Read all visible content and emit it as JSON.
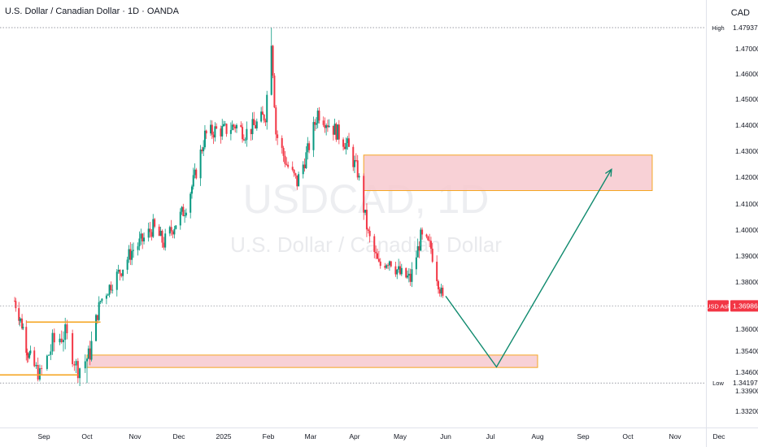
{
  "header": {
    "title": "U.S. Dollar / Canadian Dollar · 1D · OANDA",
    "currency": "CAD"
  },
  "watermark": {
    "symbol": "USDCAD, 1D",
    "name": "U.S. Dollar / Canadian Dollar"
  },
  "colors": {
    "up": "#089981",
    "down": "#f23645",
    "zone_fill": "#f7c9cf",
    "zone_border": "#f5a623",
    "arrow": "#0f8a6e",
    "price_badge": "#f23645"
  },
  "chart_data": {
    "type": "candlestick",
    "x_axis_labels": [
      "Sep",
      "Oct",
      "Nov",
      "Dec",
      "2025",
      "Feb",
      "Mar",
      "Apr",
      "May",
      "Jun",
      "Jul",
      "Aug",
      "Sep",
      "Oct",
      "Nov",
      "Dec"
    ],
    "y_axis_ticks": [
      "1.47000",
      "1.46000",
      "1.45000",
      "1.44000",
      "1.43000",
      "1.42000",
      "1.41000",
      "1.40000",
      "1.39000",
      "1.38000",
      "1.36000",
      "1.35400",
      "1.34600",
      "1.33900",
      "1.33200"
    ],
    "high": {
      "label": "High",
      "value": "1.47937"
    },
    "low": {
      "label": "Low",
      "value": "1.34197"
    },
    "current": {
      "label": "USD Ask",
      "value": "1.36986"
    },
    "price_path": [
      [
        "2024-08-15",
        1.372
      ],
      [
        "2024-08-22",
        1.362
      ],
      [
        "2024-08-29",
        1.352
      ],
      [
        "2024-09-05",
        1.345
      ],
      [
        "2024-09-12",
        1.356
      ],
      [
        "2024-09-19",
        1.359
      ],
      [
        "2024-09-26",
        1.347
      ],
      [
        "2024-10-03",
        1.353
      ],
      [
        "2024-10-10",
        1.372
      ],
      [
        "2024-10-17",
        1.379
      ],
      [
        "2024-10-24",
        1.385
      ],
      [
        "2024-10-31",
        1.392
      ],
      [
        "2024-11-07",
        1.396
      ],
      [
        "2024-11-14",
        1.401
      ],
      [
        "2024-11-21",
        1.395
      ],
      [
        "2024-11-28",
        1.402
      ],
      [
        "2024-12-05",
        1.408
      ],
      [
        "2024-12-12",
        1.42
      ],
      [
        "2024-12-19",
        1.436
      ],
      [
        "2024-12-26",
        1.438
      ],
      [
        "2025-01-02",
        1.438
      ],
      [
        "2025-01-09",
        1.44
      ],
      [
        "2025-01-16",
        1.437
      ],
      [
        "2025-01-23",
        1.44
      ],
      [
        "2025-01-30",
        1.444
      ],
      [
        "2025-02-03",
        1.474
      ],
      [
        "2025-02-06",
        1.437
      ],
      [
        "2025-02-13",
        1.425
      ],
      [
        "2025-02-20",
        1.418
      ],
      [
        "2025-02-27",
        1.43
      ],
      [
        "2025-03-06",
        1.445
      ],
      [
        "2025-03-13",
        1.441
      ],
      [
        "2025-03-20",
        1.437
      ],
      [
        "2025-03-27",
        1.432
      ],
      [
        "2025-04-03",
        1.422
      ],
      [
        "2025-04-10",
        1.398
      ],
      [
        "2025-04-17",
        1.386
      ],
      [
        "2025-04-24",
        1.389
      ],
      [
        "2025-05-01",
        1.383
      ],
      [
        "2025-05-08",
        1.381
      ],
      [
        "2025-05-15",
        1.397
      ],
      [
        "2025-05-22",
        1.393
      ],
      [
        "2025-05-29",
        1.375
      ],
      [
        "2025-05-31",
        1.36986
      ]
    ],
    "zones": [
      {
        "from": "2025-04-07",
        "to": "2025-10-17",
        "high": 1.4285,
        "low": 1.415
      },
      {
        "from": "2024-10-01",
        "to": "2025-08-01",
        "high": 1.3525,
        "low": 1.3478
      }
    ],
    "range_box": {
      "from": "2024-08-26",
      "to": "2024-10-10",
      "high": 1.363,
      "low": 1.345
    },
    "projection": [
      [
        "2025-06-01",
        1.374
      ],
      [
        "2025-07-05",
        1.348
      ],
      [
        "2025-09-20",
        1.423
      ]
    ]
  }
}
